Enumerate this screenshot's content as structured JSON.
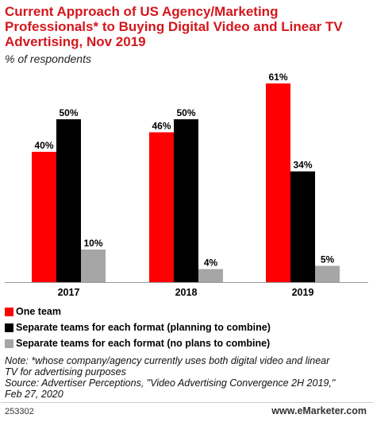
{
  "header": {
    "title": "Current Approach of US Agency/Marketing Professionals* to Buying Digital Video and Linear TV Advertising, Nov 2019",
    "subtitle": "% of respondents"
  },
  "chart_data": {
    "type": "bar",
    "categories": [
      "2017",
      "2018",
      "2019"
    ],
    "series": [
      {
        "name": "One team",
        "values": [
          40,
          46,
          61
        ],
        "color": "#ff0000"
      },
      {
        "name": "Separate teams for each format (planning to combine)",
        "values": [
          50,
          50,
          34
        ],
        "color": "#000000"
      },
      {
        "name": "Separate teams for each format (no plans to combine)",
        "values": [
          10,
          4,
          5
        ],
        "color": "#a6a6a6"
      }
    ],
    "value_suffix": "%",
    "ylim": [
      0,
      61
    ],
    "legend_position": "bottom-left",
    "grid": false
  },
  "notes": {
    "line1": "Note: *whose company/agency currently uses both digital video and linear",
    "line2": "TV for advertising purposes",
    "line3": "Source: Advertiser Perceptions, \"Video Advertising Convergence 2H 2019,\"",
    "line4": "Feb 27, 2020"
  },
  "footer": {
    "chart_id": "253302",
    "brand": "www.eMarketer.com"
  }
}
